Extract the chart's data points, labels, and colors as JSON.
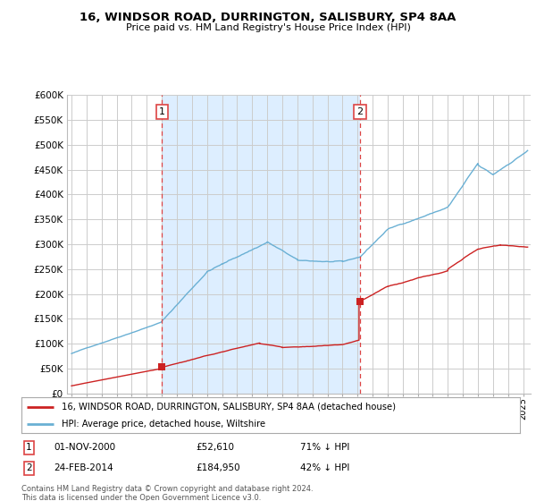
{
  "title": "16, WINDSOR ROAD, DURRINGTON, SALISBURY, SP4 8AA",
  "subtitle": "Price paid vs. HM Land Registry's House Price Index (HPI)",
  "legend_line1": "16, WINDSOR ROAD, DURRINGTON, SALISBURY, SP4 8AA (detached house)",
  "legend_line2": "HPI: Average price, detached house, Wiltshire",
  "transaction1_price": 52610,
  "transaction2_price": 184950,
  "annotation1_date": "01-NOV-2000",
  "annotation1_price": "£52,610",
  "annotation1_pct": "71% ↓ HPI",
  "annotation2_date": "24-FEB-2014",
  "annotation2_price": "£184,950",
  "annotation2_pct": "42% ↓ HPI",
  "footer": "Contains HM Land Registry data © Crown copyright and database right 2024.\nThis data is licensed under the Open Government Licence v3.0.",
  "hpi_color": "#6ab0d4",
  "price_color": "#cc2222",
  "vline_color": "#dd4444",
  "shade_color": "#ddeeff",
  "bg_color": "#ffffff",
  "grid_color": "#cccccc",
  "t1_x": 2001.0,
  "t2_x": 2014.17,
  "xlim_min": 1994.7,
  "xlim_max": 2025.5,
  "ylim_min": 0,
  "ylim_max": 600000
}
